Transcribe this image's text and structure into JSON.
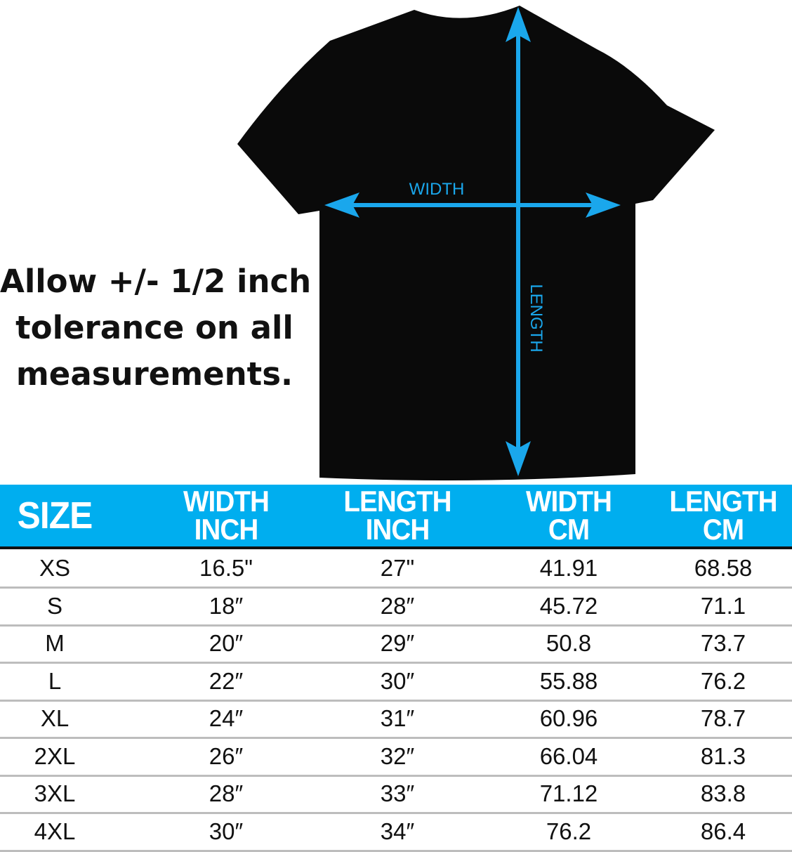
{
  "diagram": {
    "width_label": "WIDTH",
    "length_label": "LENGTH",
    "accent_color": "#1aa7ec",
    "shirt_color": "#0a0a0a"
  },
  "note": {
    "lines": [
      "Allow +/- 1/2 inch",
      "tolerance on all",
      "measurements."
    ]
  },
  "table": {
    "header_color": "#00aeef",
    "headers": [
      {
        "line1": "SIZE",
        "line2": ""
      },
      {
        "line1": "WIDTH",
        "line2": "INCH"
      },
      {
        "line1": "LENGTH",
        "line2": "INCH"
      },
      {
        "line1": "WIDTH",
        "line2": "CM"
      },
      {
        "line1": "LENGTH",
        "line2": "CM"
      }
    ],
    "rows": [
      [
        "XS",
        "16.5\"",
        "27\"",
        "41.91",
        "68.58"
      ],
      [
        "S",
        "18″",
        "28″",
        "45.72",
        "71.1"
      ],
      [
        "M",
        "20″",
        "29″",
        "50.8",
        "73.7"
      ],
      [
        "L",
        "22″",
        "30″",
        "55.88",
        "76.2"
      ],
      [
        "XL",
        "24″",
        "31″",
        "60.96",
        "78.7"
      ],
      [
        "2XL",
        "26″",
        "32″",
        "66.04",
        "81.3"
      ],
      [
        "3XL",
        "28″",
        "33″",
        "71.12",
        "83.8"
      ],
      [
        "4XL",
        "30″",
        "34″",
        "76.2",
        "86.4"
      ]
    ]
  }
}
